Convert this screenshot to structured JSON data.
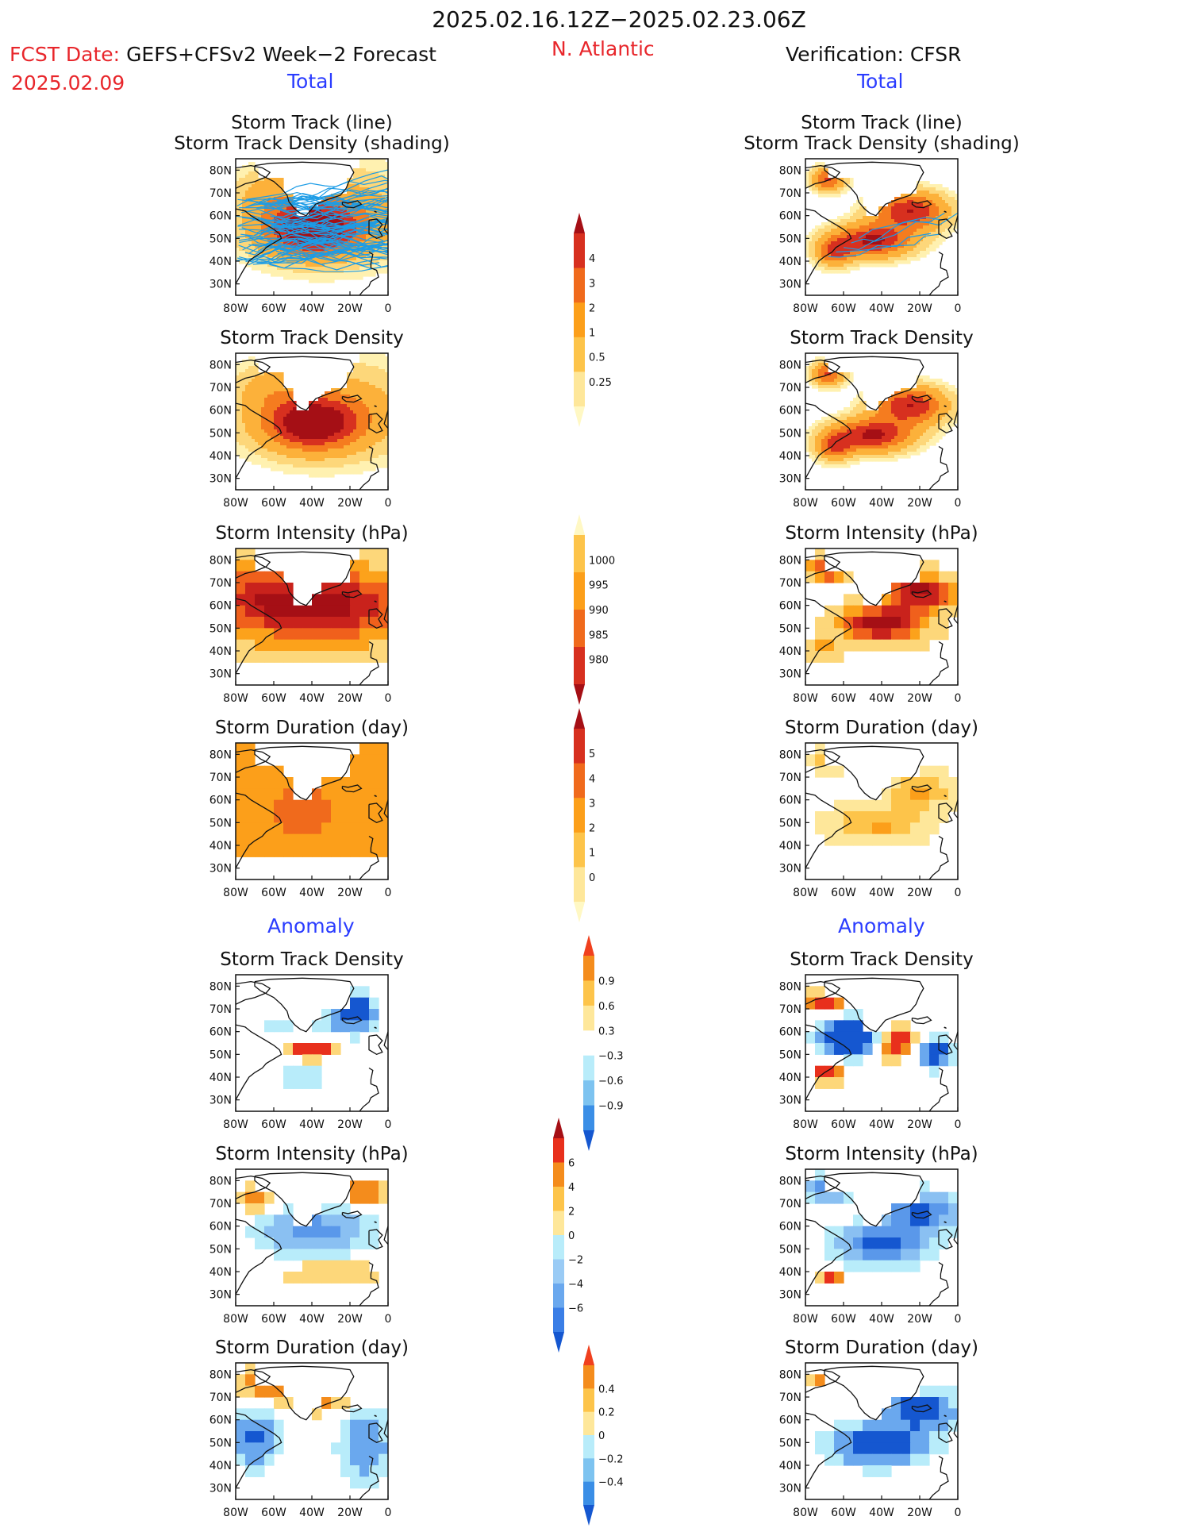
{
  "header": {
    "date_range": "2025.02.16.12Z−2025.02.23.06Z",
    "fcst_prefix": "FCST Date:",
    "fcst_model": "GEFS+CFSv2 Week−2 Forecast",
    "fcst_date": "2025.02.09",
    "region": "N. Atlantic",
    "verification": "Verification: CFSR",
    "left_total": "Total",
    "right_total": "Total",
    "left_anomaly": "Anomaly",
    "right_anomaly": "Anomaly"
  },
  "colors": {
    "title_red": "#e8262b",
    "label_blue": "#2a3cff",
    "track_line": "#1c9ce6"
  },
  "chart_data": [
    {
      "type": "heatmap",
      "column": "forecast",
      "title_lines": [
        "Storm Track (line)",
        "Storm Track Density (shading)"
      ],
      "x_ticks": [
        "80W",
        "60W",
        "40W",
        "20W",
        "0"
      ],
      "y_ticks": [
        "80N",
        "70N",
        "60N",
        "50N",
        "40N",
        "30N"
      ],
      "xlim": [
        -80,
        0
      ],
      "ylim": [
        25,
        85
      ],
      "field": "density_forecast",
      "overlay": "many forecast tracks",
      "peak": {
        "lon": -40,
        "lat": 54,
        "value": 4
      }
    },
    {
      "type": "heatmap",
      "column": "verification",
      "title_lines": [
        "Storm Track (line)",
        "Storm Track Density (shading)"
      ],
      "x_ticks": [
        "80W",
        "60W",
        "40W",
        "20W",
        "0"
      ],
      "y_ticks": [
        "80N",
        "70N",
        "60N",
        "50N",
        "40N",
        "30N"
      ],
      "xlim": [
        -80,
        0
      ],
      "ylim": [
        25,
        85
      ],
      "field": "density_verification",
      "overlay": "observed tracks",
      "peak": {
        "lon": -35,
        "lat": 55,
        "value": 4
      }
    },
    {
      "type": "heatmap",
      "column": "forecast",
      "title_lines": [
        "Storm Track Density"
      ],
      "x_ticks": [
        "80W",
        "60W",
        "40W",
        "20W",
        "0"
      ],
      "y_ticks": [
        "80N",
        "70N",
        "60N",
        "50N",
        "40N",
        "30N"
      ],
      "xlim": [
        -80,
        0
      ],
      "ylim": [
        25,
        85
      ],
      "field": "density_forecast"
    },
    {
      "type": "heatmap",
      "column": "verification",
      "title_lines": [
        "Storm Track Density"
      ],
      "x_ticks": [
        "80W",
        "60W",
        "40W",
        "20W",
        "0"
      ],
      "y_ticks": [
        "80N",
        "70N",
        "60N",
        "50N",
        "40N",
        "30N"
      ],
      "xlim": [
        -80,
        0
      ],
      "ylim": [
        25,
        85
      ],
      "field": "density_verification"
    },
    {
      "type": "heatmap",
      "column": "forecast",
      "title_lines": [
        "Storm Intensity (hPa)"
      ],
      "x_ticks": [
        "80W",
        "60W",
        "40W",
        "20W",
        "0"
      ],
      "y_ticks": [
        "80N",
        "70N",
        "60N",
        "50N",
        "40N",
        "30N"
      ],
      "xlim": [
        -80,
        0
      ],
      "ylim": [
        25,
        85
      ],
      "field": "intensity_forecast"
    },
    {
      "type": "heatmap",
      "column": "verification",
      "title_lines": [
        "Storm Intensity (hPa)"
      ],
      "x_ticks": [
        "80W",
        "60W",
        "40W",
        "20W",
        "0"
      ],
      "y_ticks": [
        "80N",
        "70N",
        "60N",
        "50N",
        "40N",
        "30N"
      ],
      "xlim": [
        -80,
        0
      ],
      "ylim": [
        25,
        85
      ],
      "field": "intensity_verification"
    },
    {
      "type": "heatmap",
      "column": "forecast",
      "title_lines": [
        "Storm Duration (day)"
      ],
      "x_ticks": [
        "80W",
        "60W",
        "40W",
        "20W",
        "0"
      ],
      "y_ticks": [
        "80N",
        "70N",
        "60N",
        "50N",
        "40N",
        "30N"
      ],
      "xlim": [
        -80,
        0
      ],
      "ylim": [
        25,
        85
      ],
      "field": "duration_forecast"
    },
    {
      "type": "heatmap",
      "column": "verification",
      "title_lines": [
        "Storm Duration (day)"
      ],
      "x_ticks": [
        "80W",
        "60W",
        "40W",
        "20W",
        "0"
      ],
      "y_ticks": [
        "80N",
        "70N",
        "60N",
        "50N",
        "40N",
        "30N"
      ],
      "xlim": [
        -80,
        0
      ],
      "ylim": [
        25,
        85
      ],
      "field": "duration_verification"
    },
    {
      "type": "heatmap",
      "column": "forecast",
      "title_lines": [
        "Storm Track Density"
      ],
      "x_ticks": [
        "80W",
        "60W",
        "40W",
        "20W",
        "0"
      ],
      "y_ticks": [
        "80N",
        "70N",
        "60N",
        "50N",
        "40N",
        "30N"
      ],
      "xlim": [
        -80,
        0
      ],
      "ylim": [
        25,
        85
      ],
      "field": "density_anom_forecast"
    },
    {
      "type": "heatmap",
      "column": "verification",
      "title_lines": [
        "Storm Track Density"
      ],
      "x_ticks": [
        "80W",
        "60W",
        "40W",
        "20W",
        "0"
      ],
      "y_ticks": [
        "80N",
        "70N",
        "60N",
        "50N",
        "40N",
        "30N"
      ],
      "xlim": [
        -80,
        0
      ],
      "ylim": [
        25,
        85
      ],
      "field": "density_anom_verification"
    },
    {
      "type": "heatmap",
      "column": "forecast",
      "title_lines": [
        "Storm Intensity (hPa)"
      ],
      "x_ticks": [
        "80W",
        "60W",
        "40W",
        "20W",
        "0"
      ],
      "y_ticks": [
        "80N",
        "70N",
        "60N",
        "50N",
        "40N",
        "30N"
      ],
      "xlim": [
        -80,
        0
      ],
      "ylim": [
        25,
        85
      ],
      "field": "intensity_anom_forecast"
    },
    {
      "type": "heatmap",
      "column": "verification",
      "title_lines": [
        "Storm Intensity (hPa)"
      ],
      "x_ticks": [
        "80W",
        "60W",
        "40W",
        "20W",
        "0"
      ],
      "y_ticks": [
        "80N",
        "70N",
        "60N",
        "50N",
        "40N",
        "30N"
      ],
      "xlim": [
        -80,
        0
      ],
      "ylim": [
        25,
        85
      ],
      "field": "intensity_anom_verification"
    },
    {
      "type": "heatmap",
      "column": "forecast",
      "title_lines": [
        "Storm Duration (day)"
      ],
      "x_ticks": [
        "80W",
        "60W",
        "40W",
        "20W",
        "0"
      ],
      "y_ticks": [
        "80N",
        "70N",
        "60N",
        "50N",
        "40N",
        "30N"
      ],
      "xlim": [
        -80,
        0
      ],
      "ylim": [
        25,
        85
      ],
      "field": "duration_anom_forecast"
    },
    {
      "type": "heatmap",
      "column": "verification",
      "title_lines": [
        "Storm Duration (day)"
      ],
      "x_ticks": [
        "80W",
        "60W",
        "40W",
        "20W",
        "0"
      ],
      "y_ticks": [
        "80N",
        "70N",
        "60N",
        "50N",
        "40N",
        "30N"
      ],
      "xlim": [
        -80,
        0
      ],
      "ylim": [
        25,
        85
      ],
      "field": "duration_anom_verification"
    }
  ],
  "colorbars": [
    {
      "name": "density",
      "labels": [
        "4",
        "3",
        "2",
        "1",
        "0.5",
        "0.25"
      ],
      "colors": [
        "#a50f15",
        "#d7301f",
        "#f06a1c",
        "#fc9f1a",
        "#fdc44a",
        "#fee79a",
        "#fff8c4"
      ]
    },
    {
      "name": "intensity",
      "labels": [
        "1000",
        "995",
        "990",
        "985",
        "980"
      ],
      "colors": [
        "#fff8c4",
        "#fdc44a",
        "#fc9f1a",
        "#f06a1c",
        "#d7301f",
        "#a50f15"
      ]
    },
    {
      "name": "duration",
      "labels": [
        "5",
        "4",
        "3",
        "2",
        "1",
        "0"
      ],
      "colors": [
        "#a50f15",
        "#d7301f",
        "#f06a1c",
        "#fc9f1a",
        "#fdc44a",
        "#fee79a",
        "#fff8c4"
      ]
    },
    {
      "name": "density_anomaly",
      "labels": [
        "0.9",
        "0.6",
        "0.3",
        "−0.3",
        "−0.6",
        "−0.9"
      ],
      "colors": [
        "#f0401e",
        "#f48c1c",
        "#fdc44a",
        "#fee79a",
        "#ffffff",
        "#b8ecfa",
        "#7dc3f0",
        "#3a8ee6",
        "#1557d0"
      ]
    },
    {
      "name": "intensity_anomaly",
      "labels": [
        "6",
        "4",
        "2",
        "0",
        "−2",
        "−4",
        "−6"
      ],
      "colors": [
        "#a50f15",
        "#e8301c",
        "#f48c1c",
        "#fdc44a",
        "#fee79a",
        "#b8ecfa",
        "#9acbf5",
        "#6aa8ee",
        "#3a7ee6",
        "#1557d0"
      ]
    },
    {
      "name": "duration_anomaly",
      "labels": [
        "0.4",
        "0.2",
        "0",
        "−0.2",
        "−0.4"
      ],
      "colors": [
        "#f0401e",
        "#f48c1c",
        "#fdc44a",
        "#fee79a",
        "#b8ecfa",
        "#7dc3f0",
        "#3a8ee6",
        "#1557d0"
      ]
    }
  ]
}
